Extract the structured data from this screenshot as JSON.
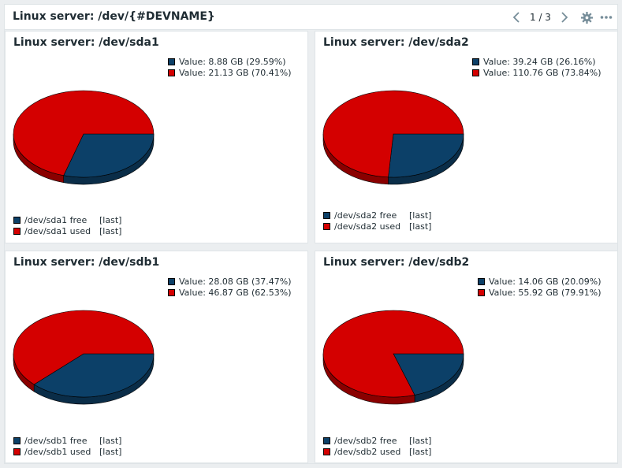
{
  "header": {
    "title": "Linux server: /dev/{#DEVNAME}",
    "page_indicator": "1 / 3",
    "prev_icon": "chevron-left-icon",
    "next_icon": "chevron-right-icon",
    "settings_icon": "gear-icon",
    "more_icon": "more-horizontal-icon"
  },
  "colors": {
    "free": "#0c4068",
    "used": "#d40000",
    "free_side": "#0a2d48",
    "used_side": "#8a0000"
  },
  "panels": [
    {
      "title": "Linux server: /dev/sda1",
      "values": [
        "Value: 8.88 GB (29.59%)",
        "Value: 21.13 GB (70.41%)"
      ],
      "legend": [
        {
          "name": "/dev/sda1 free",
          "fn": "[last]"
        },
        {
          "name": "/dev/sda1 used",
          "fn": "[last]"
        }
      ]
    },
    {
      "title": "Linux server: /dev/sda2",
      "values": [
        "Value: 39.24 GB (26.16%)",
        "Value: 110.76 GB (73.84%)"
      ],
      "legend": [
        {
          "name": "/dev/sda2 free",
          "fn": "[last]"
        },
        {
          "name": "/dev/sda2 used",
          "fn": "[last]"
        }
      ]
    },
    {
      "title": "Linux server: /dev/sdb1",
      "values": [
        "Value: 28.08 GB (37.47%)",
        "Value: 46.87 GB (62.53%)"
      ],
      "legend": [
        {
          "name": "/dev/sdb1 free",
          "fn": "[last]"
        },
        {
          "name": "/dev/sdb1 used",
          "fn": "[last]"
        }
      ]
    },
    {
      "title": "Linux server: /dev/sdb2",
      "values": [
        "Value: 14.06 GB (20.09%)",
        "Value: 55.92 GB (79.91%)"
      ],
      "legend": [
        {
          "name": "/dev/sdb2 free",
          "fn": "[last]"
        },
        {
          "name": "/dev/sdb2 used",
          "fn": "[last]"
        }
      ]
    }
  ],
  "chart_data": [
    {
      "type": "pie",
      "labels": [
        "/dev/sda1 free",
        "/dev/sda1 used"
      ],
      "values": [
        29.59,
        70.41
      ]
    },
    {
      "type": "pie",
      "labels": [
        "/dev/sda2 free",
        "/dev/sda2 used"
      ],
      "values": [
        26.16,
        73.84
      ]
    },
    {
      "type": "pie",
      "labels": [
        "/dev/sdb1 free",
        "/dev/sdb1 used"
      ],
      "values": [
        37.47,
        62.53
      ]
    },
    {
      "type": "pie",
      "labels": [
        "/dev/sdb2 free",
        "/dev/sdb2 used"
      ],
      "values": [
        20.09,
        79.91
      ]
    }
  ]
}
